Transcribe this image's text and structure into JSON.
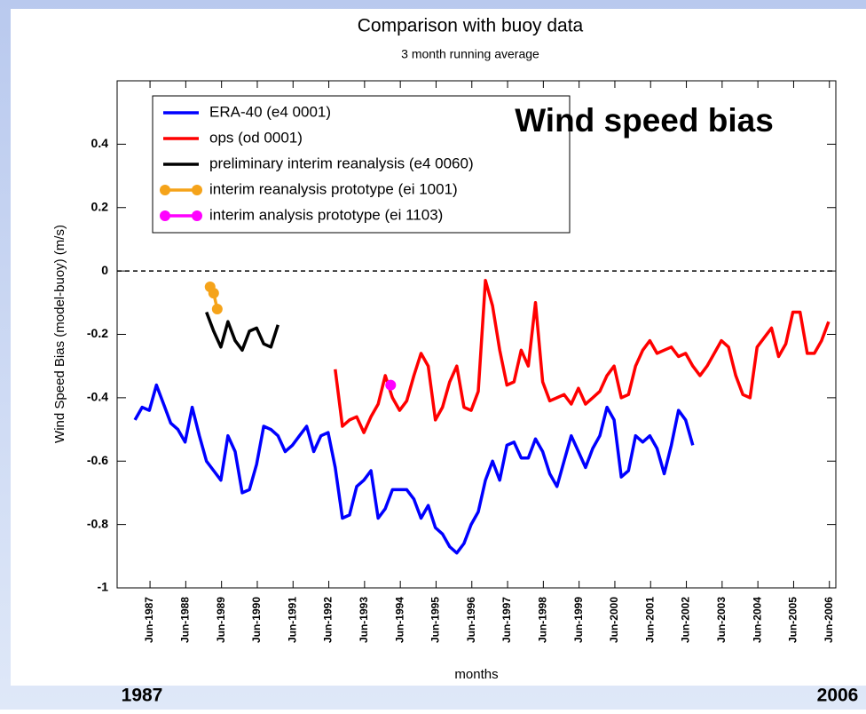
{
  "chart_data": {
    "type": "line",
    "title": "Comparison with buoy data",
    "subtitle": "3 month running average",
    "annotation": "Wind speed bias",
    "x_label": "months",
    "y_label": "Wind Speed Bias (model-buoy) (m/s)",
    "start_label": "1987",
    "end_label": "2006",
    "xlim": [
      1986.5,
      2006.6
    ],
    "ylim": [
      -1,
      0.6
    ],
    "yticks": [
      -1,
      -0.8,
      -0.6,
      -0.4,
      -0.2,
      0,
      0.2,
      0.4
    ],
    "xticks": [
      {
        "value": 1987.42,
        "label": "Jun-1987"
      },
      {
        "value": 1988.42,
        "label": "Jun-1988"
      },
      {
        "value": 1989.42,
        "label": "Jun-1989"
      },
      {
        "value": 1990.42,
        "label": "Jun-1990"
      },
      {
        "value": 1991.42,
        "label": "Jun-1991"
      },
      {
        "value": 1992.42,
        "label": "Jun-1992"
      },
      {
        "value": 1993.42,
        "label": "Jun-1993"
      },
      {
        "value": 1994.42,
        "label": "Jun-1994"
      },
      {
        "value": 1995.42,
        "label": "Jun-1995"
      },
      {
        "value": 1996.42,
        "label": "Jun-1996"
      },
      {
        "value": 1997.42,
        "label": "Jun-1997"
      },
      {
        "value": 1998.42,
        "label": "Jun-1998"
      },
      {
        "value": 1999.42,
        "label": "Jun-1999"
      },
      {
        "value": 2000.42,
        "label": "Jun-2000"
      },
      {
        "value": 2001.42,
        "label": "Jun-2001"
      },
      {
        "value": 2002.42,
        "label": "Jun-2002"
      },
      {
        "value": 2003.42,
        "label": "Jun-2003"
      },
      {
        "value": 2004.42,
        "label": "Jun-2004"
      },
      {
        "value": 2005.42,
        "label": "Jun-2005"
      },
      {
        "value": 2006.42,
        "label": "Jun-2006"
      }
    ],
    "reference_line": 0,
    "legend": "top-left",
    "series": [
      {
        "name": "ERA-40 (e4 0001)",
        "color": "#0000ff",
        "markers": false,
        "x": [
          1987.0,
          1987.2,
          1987.4,
          1987.6,
          1987.8,
          1988.0,
          1988.2,
          1988.4,
          1988.6,
          1988.8,
          1989.0,
          1989.2,
          1989.4,
          1989.6,
          1989.8,
          1990.0,
          1990.2,
          1990.4,
          1990.6,
          1990.8,
          1991.0,
          1991.2,
          1991.4,
          1991.6,
          1991.8,
          1992.0,
          1992.2,
          1992.4,
          1992.6,
          1992.8,
          1993.0,
          1993.2,
          1993.4,
          1993.6,
          1993.8,
          1994.0,
          1994.2,
          1994.4,
          1994.6,
          1994.8,
          1995.0,
          1995.2,
          1995.4,
          1995.6,
          1995.8,
          1996.0,
          1996.2,
          1996.4,
          1996.6,
          1996.8,
          1997.0,
          1997.2,
          1997.4,
          1997.6,
          1997.8,
          1998.0,
          1998.2,
          1998.4,
          1998.6,
          1998.8,
          1999.0,
          1999.2,
          1999.4,
          1999.6,
          1999.8,
          2000.0,
          2000.2,
          2000.4,
          2000.6,
          2000.8,
          2001.0,
          2001.2,
          2001.4,
          2001.6,
          2001.8,
          2002.0,
          2002.2,
          2002.4,
          2002.6
        ],
        "values": [
          -0.47,
          -0.43,
          -0.44,
          -0.36,
          -0.42,
          -0.48,
          -0.5,
          -0.54,
          -0.43,
          -0.52,
          -0.6,
          -0.63,
          -0.66,
          -0.52,
          -0.57,
          -0.7,
          -0.69,
          -0.61,
          -0.49,
          -0.5,
          -0.52,
          -0.57,
          -0.55,
          -0.52,
          -0.49,
          -0.57,
          -0.52,
          -0.51,
          -0.62,
          -0.78,
          -0.77,
          -0.68,
          -0.66,
          -0.63,
          -0.78,
          -0.75,
          -0.69,
          -0.69,
          -0.69,
          -0.72,
          -0.78,
          -0.74,
          -0.81,
          -0.83,
          -0.87,
          -0.89,
          -0.86,
          -0.8,
          -0.76,
          -0.66,
          -0.6,
          -0.66,
          -0.55,
          -0.54,
          -0.59,
          -0.59,
          -0.53,
          -0.57,
          -0.64,
          -0.68,
          -0.6,
          -0.52,
          -0.57,
          -0.62,
          -0.56,
          -0.52,
          -0.43,
          -0.47,
          -0.65,
          -0.63,
          -0.52,
          -0.54,
          -0.52,
          -0.56,
          -0.64,
          -0.55,
          -0.44,
          -0.47,
          -0.55
        ]
      },
      {
        "name": "ops (od 0001)",
        "color": "#ff0000",
        "markers": false,
        "x": [
          1992.6,
          1992.8,
          1993.0,
          1993.2,
          1993.4,
          1993.6,
          1993.8,
          1994.0,
          1994.2,
          1994.4,
          1994.6,
          1994.8,
          1995.0,
          1995.2,
          1995.4,
          1995.6,
          1995.8,
          1996.0,
          1996.2,
          1996.4,
          1996.6,
          1996.8,
          1997.0,
          1997.2,
          1997.4,
          1997.6,
          1997.8,
          1998.0,
          1998.2,
          1998.4,
          1998.6,
          1998.8,
          1999.0,
          1999.2,
          1999.4,
          1999.6,
          1999.8,
          2000.0,
          2000.2,
          2000.4,
          2000.6,
          2000.8,
          2001.0,
          2001.2,
          2001.4,
          2001.6,
          2001.8,
          2002.0,
          2002.2,
          2002.4,
          2002.6,
          2002.8,
          2003.0,
          2003.2,
          2003.4,
          2003.6,
          2003.8,
          2004.0,
          2004.2,
          2004.4,
          2004.6,
          2004.8,
          2005.0,
          2005.2,
          2005.4,
          2005.6,
          2005.8,
          2006.0,
          2006.2,
          2006.4
        ],
        "values": [
          -0.31,
          -0.49,
          -0.47,
          -0.46,
          -0.51,
          -0.46,
          -0.42,
          -0.33,
          -0.4,
          -0.44,
          -0.41,
          -0.33,
          -0.26,
          -0.3,
          -0.47,
          -0.43,
          -0.35,
          -0.3,
          -0.43,
          -0.44,
          -0.38,
          -0.03,
          -0.11,
          -0.25,
          -0.36,
          -0.35,
          -0.25,
          -0.3,
          -0.1,
          -0.35,
          -0.41,
          -0.4,
          -0.39,
          -0.42,
          -0.37,
          -0.42,
          -0.4,
          -0.38,
          -0.33,
          -0.3,
          -0.4,
          -0.39,
          -0.3,
          -0.25,
          -0.22,
          -0.26,
          -0.25,
          -0.24,
          -0.27,
          -0.26,
          -0.3,
          -0.33,
          -0.3,
          -0.26,
          -0.22,
          -0.24,
          -0.33,
          -0.39,
          -0.4,
          -0.24,
          -0.21,
          -0.18,
          -0.27,
          -0.23,
          -0.13,
          -0.13,
          -0.26,
          -0.26,
          -0.22,
          -0.16
        ]
      },
      {
        "name": "preliminary interim reanalysis (e4 0060)",
        "color": "#000000",
        "markers": false,
        "x": [
          1989.0,
          1989.2,
          1989.4,
          1989.6,
          1989.8,
          1990.0,
          1990.2,
          1990.4,
          1990.6,
          1990.8,
          1991.0
        ],
        "values": [
          -0.13,
          -0.19,
          -0.24,
          -0.16,
          -0.22,
          -0.25,
          -0.19,
          -0.18,
          -0.23,
          -0.24,
          -0.17
        ]
      },
      {
        "name": "interim reanalysis prototype (ei 1001)",
        "color": "#f5a31a",
        "markers": true,
        "x": [
          1989.1,
          1989.2,
          1989.3
        ],
        "values": [
          -0.05,
          -0.07,
          -0.12
        ]
      },
      {
        "name": "interim analysis prototype (ei 1103)",
        "color": "#ff00ff",
        "markers": true,
        "x": [
          1994.15
        ],
        "values": [
          -0.36
        ]
      }
    ]
  }
}
